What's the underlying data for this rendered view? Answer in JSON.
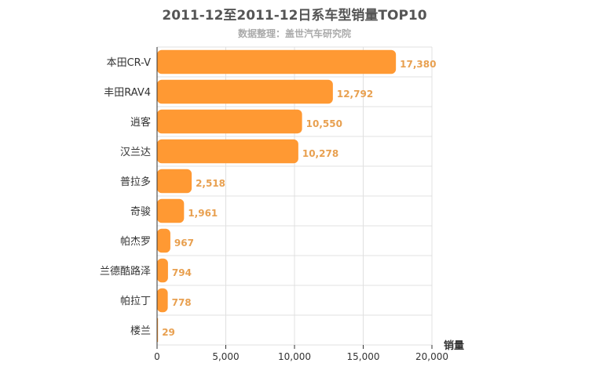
{
  "chart_data": {
    "type": "bar",
    "orientation": "horizontal",
    "title": "2011-12至2011-12日系车型销量TOP10",
    "subtitle": "数据整理：盖世汽车研究院",
    "xlabel": "销量",
    "ylabel": "",
    "categories": [
      "本田CR-V",
      "丰田RAV4",
      "逍客",
      "汉兰达",
      "普拉多",
      "奇骏",
      "帕杰罗",
      "兰德酷路泽",
      "帕拉丁",
      "楼兰"
    ],
    "values": [
      17380,
      12792,
      10550,
      10278,
      2518,
      1961,
      967,
      794,
      778,
      29
    ],
    "value_labels": [
      "17,380",
      "12,792",
      "10,550",
      "10,278",
      "2,518",
      "1,961",
      "967",
      "794",
      "778",
      "29"
    ],
    "xlim": [
      0,
      20000
    ],
    "xticks": [
      0,
      5000,
      10000,
      15000,
      20000
    ],
    "xtick_labels": [
      "0",
      "5,000",
      "10,000",
      "15,000",
      "20,000"
    ],
    "grid": true,
    "bar_color": "#ff9933",
    "label_color": "#e8a050"
  }
}
